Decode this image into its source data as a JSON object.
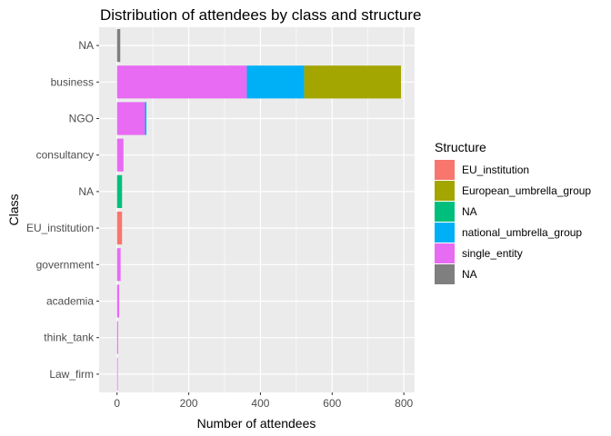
{
  "chart_data": {
    "type": "bar",
    "orientation": "horizontal",
    "stacked": true,
    "title": "Distribution of attendees by class and structure",
    "xlabel": "Number of attendees",
    "ylabel": "Class",
    "xlim": [
      -50,
      830
    ],
    "xticks": [
      0,
      200,
      400,
      600,
      800
    ],
    "grid": true,
    "legend_position": "right",
    "legend_title": "Structure",
    "categories": [
      "NA",
      "business",
      "NGO",
      "consultancy",
      "NA",
      "EU_institution",
      "government",
      "academia",
      "think_tank",
      "Law_firm"
    ],
    "series": [
      {
        "name": "EU_institution",
        "color": "#F8766D",
        "values": [
          0,
          0,
          0,
          0,
          0,
          14,
          0,
          0,
          0,
          0
        ]
      },
      {
        "name": "European_umbrella_group",
        "color": "#A3A500",
        "values": [
          0,
          270,
          0,
          0,
          0,
          0,
          0,
          0,
          0,
          0
        ]
      },
      {
        "name": "NA",
        "color": "#00BF7D",
        "values": [
          0,
          0,
          0,
          0,
          14,
          0,
          0,
          0,
          0,
          0
        ]
      },
      {
        "name": "national_umbrella_group",
        "color": "#00B0F6",
        "values": [
          0,
          160,
          4,
          0,
          0,
          0,
          0,
          0,
          0,
          0
        ]
      },
      {
        "name": "single_entity",
        "color": "#E76BF3",
        "values": [
          0,
          362,
          78,
          18,
          0,
          0,
          10,
          6,
          3,
          1
        ]
      },
      {
        "name": "NA",
        "color": "#7F7F7F",
        "values": [
          9,
          0,
          0,
          0,
          0,
          0,
          0,
          0,
          0,
          0
        ]
      }
    ]
  }
}
